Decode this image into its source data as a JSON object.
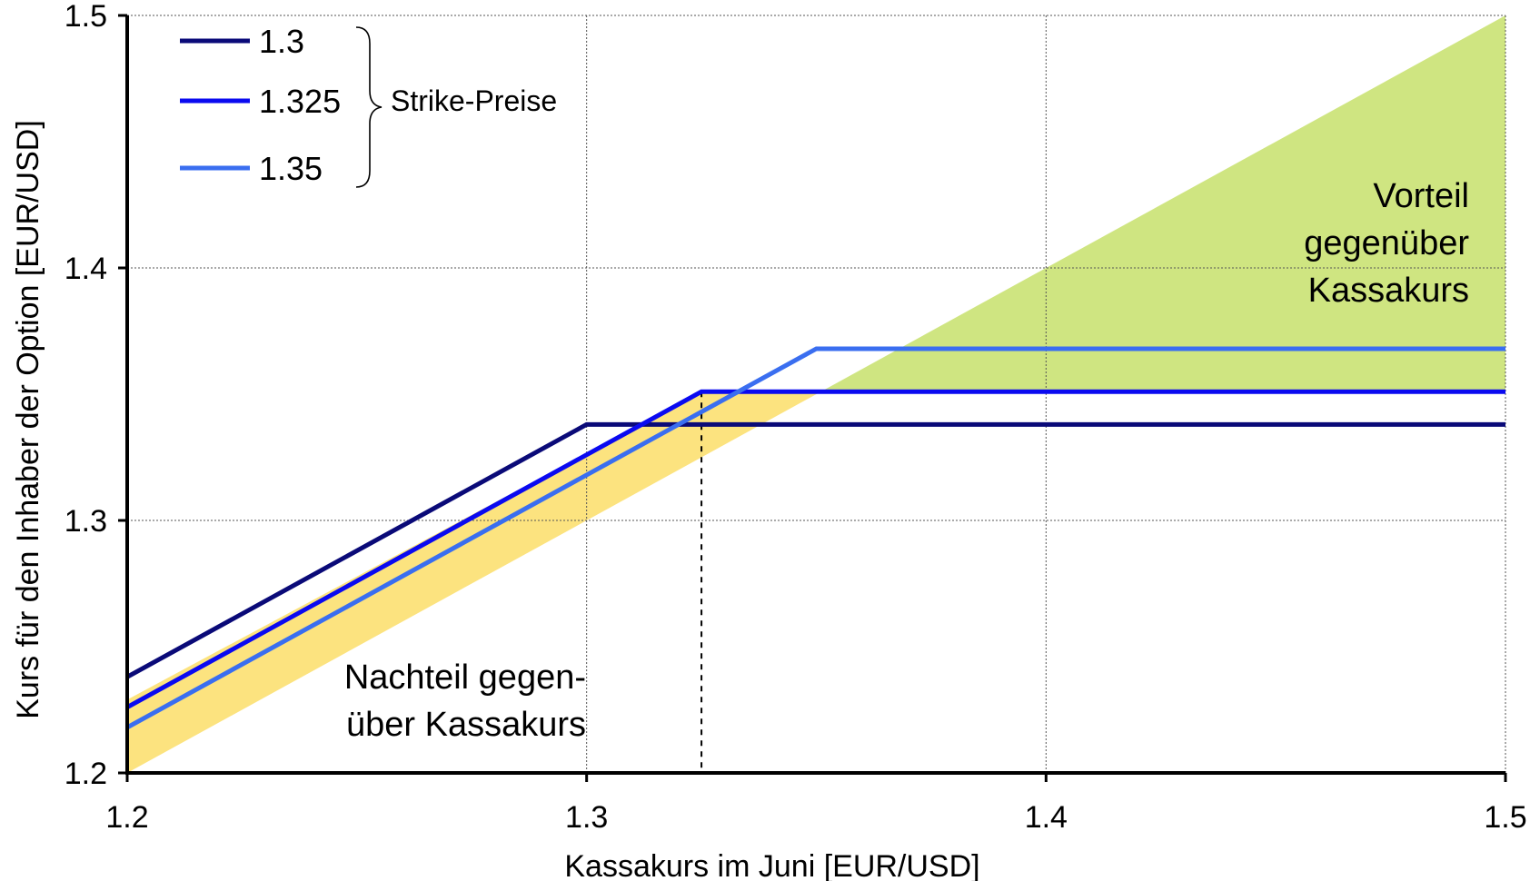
{
  "chart_data": {
    "type": "line",
    "xlabel": "Kassakurs im Juni [EUR/USD]",
    "ylabel": "Kurs für den Inhaber der Option [EUR/USD]",
    "xlim": [
      1.2,
      1.5
    ],
    "ylim": [
      1.2,
      1.5
    ],
    "x_ticks": [
      "1.2",
      "1.3",
      "1.4",
      "1.5"
    ],
    "y_ticks": [
      "1.2",
      "1.3",
      "1.4",
      "1.5"
    ],
    "grid": true,
    "legend_position": "top-left",
    "legend_group_label": "Strike-Preise",
    "strike_marker_x": 1.325,
    "series": [
      {
        "name": "1.3",
        "color": "#0a0a78",
        "points": [
          [
            1.2,
            1.238
          ],
          [
            1.3,
            1.338
          ],
          [
            1.5,
            1.338
          ]
        ]
      },
      {
        "name": "1.325",
        "color": "#0a0af0",
        "points": [
          [
            1.2,
            1.226
          ],
          [
            1.325,
            1.351
          ],
          [
            1.5,
            1.351
          ]
        ]
      },
      {
        "name": "1.35",
        "color": "#3a6ef0",
        "points": [
          [
            1.2,
            1.218
          ],
          [
            1.35,
            1.368
          ],
          [
            1.5,
            1.368
          ]
        ]
      }
    ],
    "regions": [
      {
        "label": "Nachteil gegen-\nüber Kassakurs",
        "color": "#fce37f",
        "polygon": [
          [
            1.2,
            1.2
          ],
          [
            1.2,
            1.229
          ],
          [
            1.325,
            1.351
          ],
          [
            1.351,
            1.351
          ]
        ]
      },
      {
        "label": "Vorteil\ngegenüber\nKassakurs",
        "color": "#cfe581",
        "polygon": [
          [
            1.351,
            1.351
          ],
          [
            1.5,
            1.351
          ],
          [
            1.5,
            1.5
          ]
        ]
      }
    ]
  }
}
